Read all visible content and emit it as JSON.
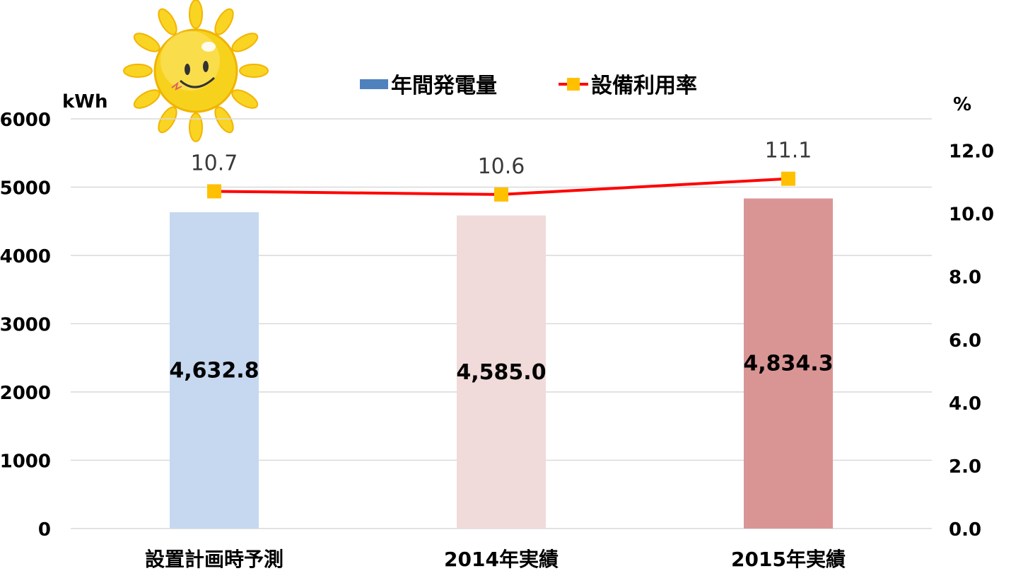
{
  "chart_data": {
    "type": "bar",
    "categories": [
      "設置計画時予測",
      "2014年実績",
      "2015年実績"
    ],
    "series": [
      {
        "name": "年間発電量",
        "type": "bar",
        "axis": "left",
        "values": [
          4632.8,
          4585.0,
          4834.3
        ],
        "value_labels": [
          "4,632.8",
          "4,585.0",
          "4,834.3"
        ],
        "colors": [
          "#c6d8f0",
          "#f0dada",
          "#d99594"
        ],
        "legend_color": "#4f81bd"
      },
      {
        "name": "設備利用率",
        "type": "line",
        "axis": "right",
        "values": [
          10.7,
          10.6,
          11.1
        ],
        "value_labels": [
          "10.7",
          "10.6",
          "11.1"
        ],
        "line_color": "#ff0000",
        "marker_color": "#ffc000"
      }
    ],
    "left_axis": {
      "unit": "kWh",
      "ylim": [
        0,
        6000
      ],
      "ticks": [
        "0",
        "1000",
        "2000",
        "3000",
        "4000",
        "5000",
        "6000"
      ]
    },
    "right_axis": {
      "unit": "%",
      "ylim": [
        0,
        13
      ],
      "ticks": [
        "0.0",
        "2.0",
        "4.0",
        "6.0",
        "8.0",
        "10.0",
        "12.0"
      ]
    },
    "grid": true,
    "legend_position": "top-center",
    "decoration_icon": "sun-icon"
  }
}
